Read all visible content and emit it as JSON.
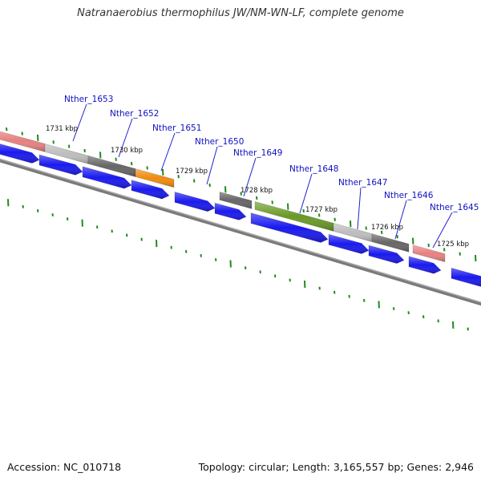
{
  "title": "Natranaerobius thermophilus JW/NM-WN-LF, complete genome",
  "footer": {
    "accession": "Accession: NC_010718",
    "summary": "Topology: circular; Length: 3,165,557 bp; Genes: 2,946"
  },
  "colors": {
    "backbone": "#7a7a7a",
    "cds": "#1a1aee",
    "tick": "#1f8a1f",
    "gene_label": "#1010c0",
    "leader_line": "#2222cc"
  },
  "kbp_labels": [
    "1731 kbp",
    "1730 kbp",
    "1729 kbp",
    "1728 kbp",
    "1727 kbp",
    "1726 kbp",
    "1725 kbp"
  ],
  "genes": [
    {
      "id": "Nther_1653",
      "color": "#e88080"
    },
    {
      "id": "Nther_1652",
      "color": "#bdbdbd"
    },
    {
      "id": "Nther_1651",
      "color": "#666666"
    },
    {
      "id": "Nther_1650",
      "color": "#f08a10"
    },
    {
      "id": "Nther_1649",
      "color": "#666666"
    },
    {
      "id": "Nther_1648",
      "color": "#6a9a26"
    },
    {
      "id": "Nther_1647",
      "color": "#bdbdbd"
    },
    {
      "id": "Nther_1646",
      "color": "#666666"
    },
    {
      "id": "Nther_1645",
      "color": "#e88080"
    }
  ]
}
